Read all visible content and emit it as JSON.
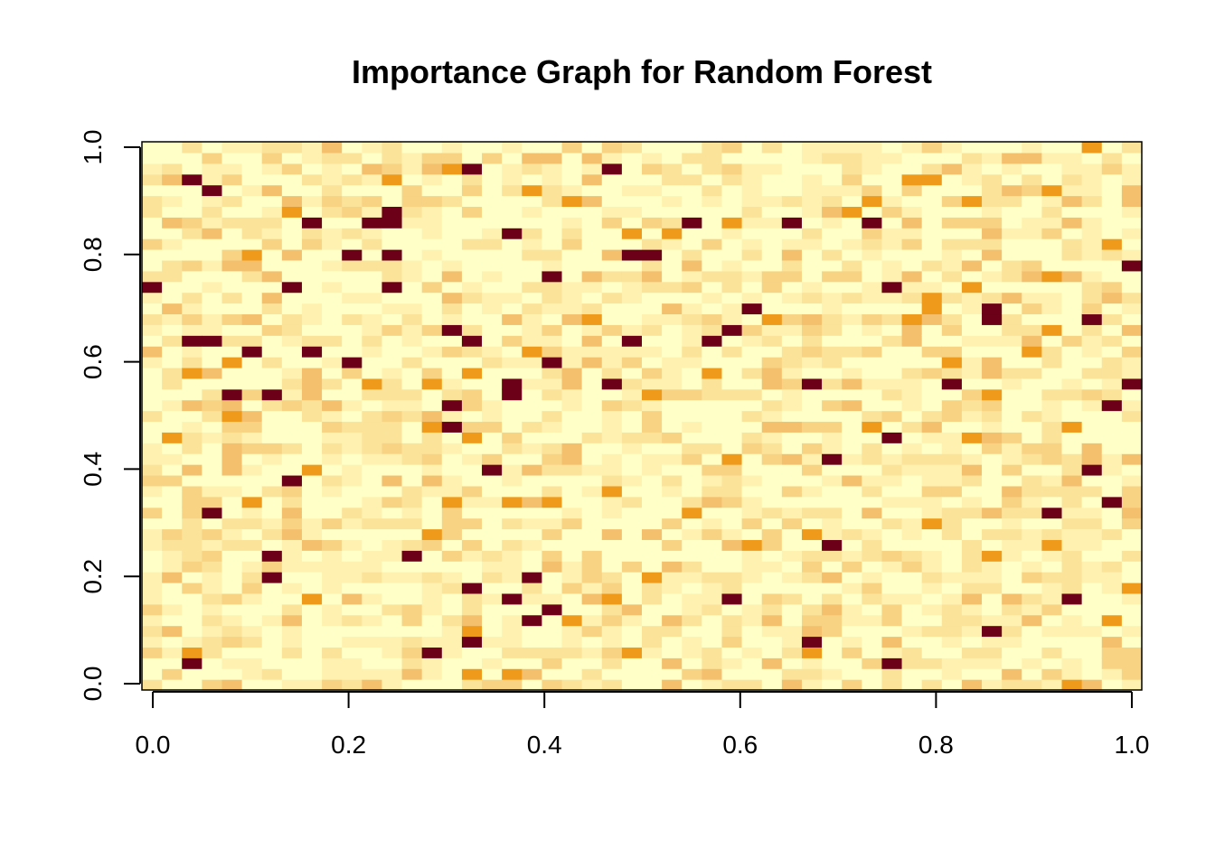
{
  "chart_data": {
    "type": "heatmap",
    "title": "Importance Graph for Random Forest",
    "xlabel": "",
    "ylabel": "",
    "xlim": [
      0.0,
      1.0
    ],
    "ylim": [
      0.0,
      1.0
    ],
    "x_ticks": [
      "0.0",
      "0.2",
      "0.4",
      "0.6",
      "0.8",
      "1.0"
    ],
    "y_ticks": [
      "0.0",
      "0.2",
      "0.4",
      "0.6",
      "0.8",
      "1.0"
    ],
    "grid": false,
    "legend": "none",
    "palette": [
      "#ffffc8",
      "#fff2b0",
      "#fbe39a",
      "#f8d384",
      "#f4c06e",
      "#ef9a1b",
      "#6b0018"
    ],
    "n_cols": 50,
    "n_rows": 51,
    "random_seed": 1234567
  }
}
